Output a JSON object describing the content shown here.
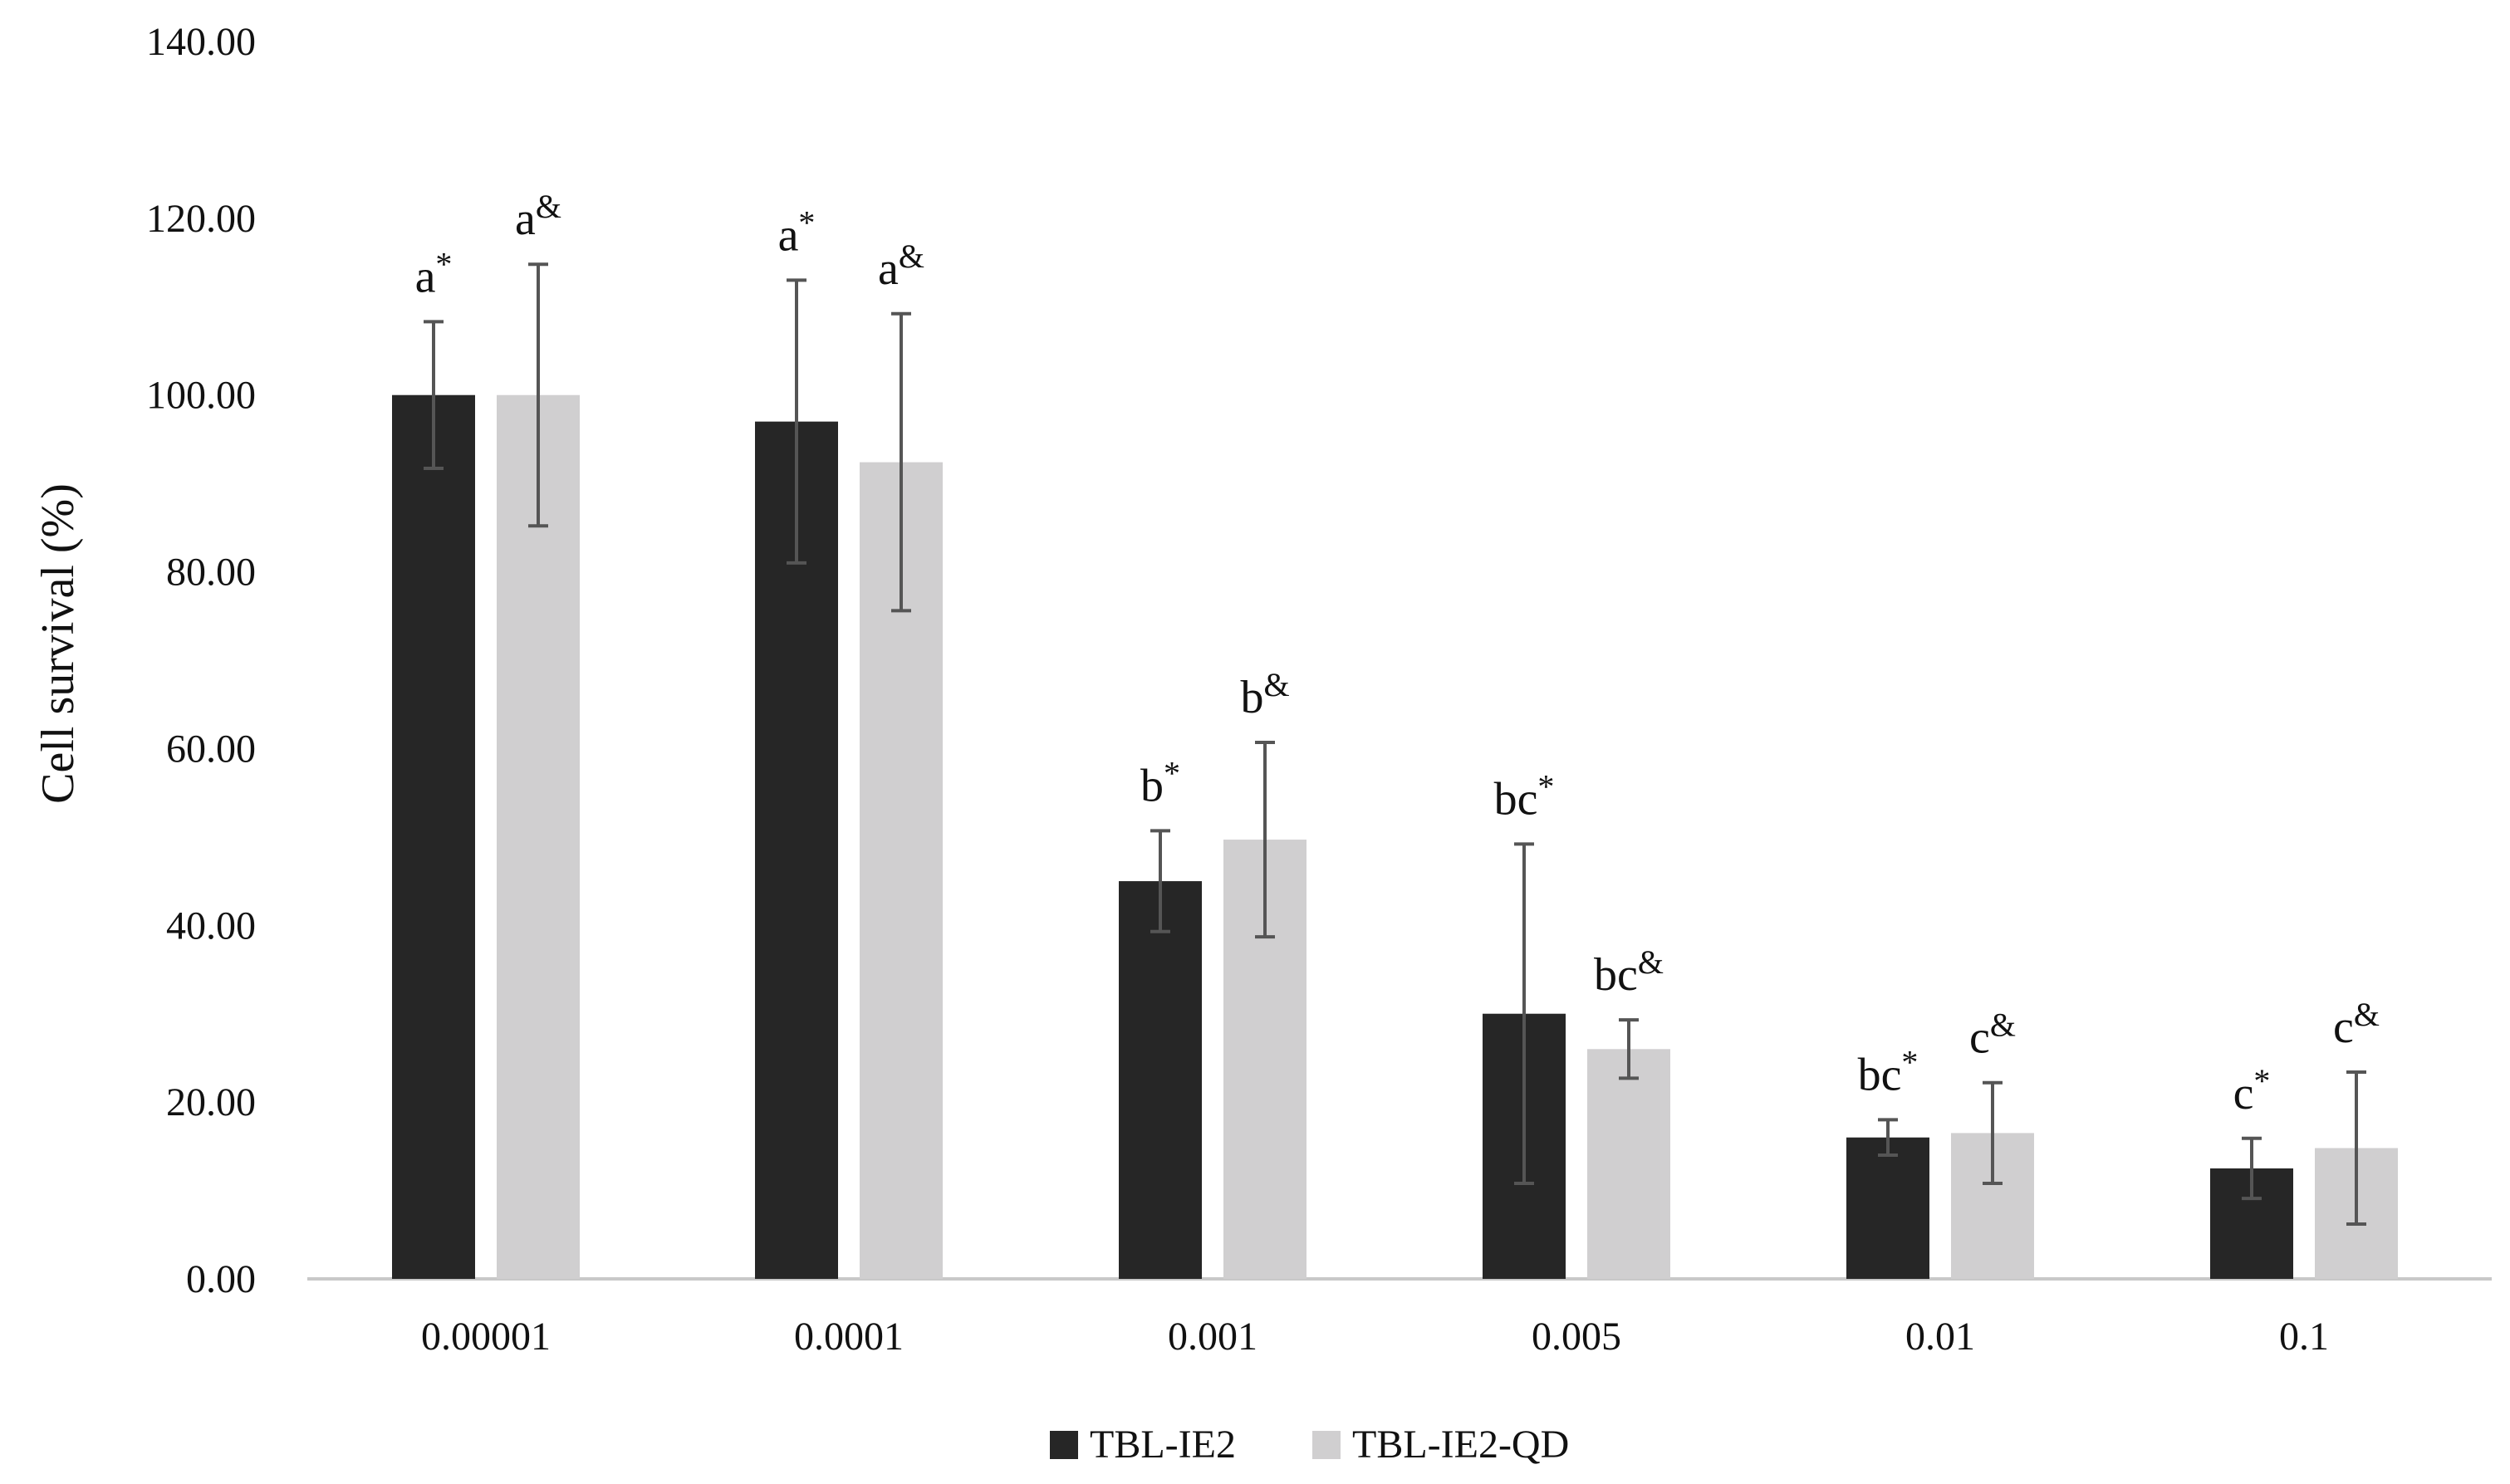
{
  "chart_data": {
    "type": "bar",
    "title": "",
    "xlabel": "",
    "ylabel": "Cell survival (%)",
    "ylim": [
      0,
      140
    ],
    "yticks": [
      "0.00",
      "20.00",
      "40.00",
      "60.00",
      "80.00",
      "100.00",
      "120.00",
      "140.00"
    ],
    "categories": [
      "0.00001",
      "0.0001",
      "0.001",
      "0.005",
      "0.01",
      "0.1"
    ],
    "grid": false,
    "legend_position": "bottom-center",
    "series": [
      {
        "name": "TBL-IE2",
        "color": "#262626",
        "values": [
          100.0,
          97.0,
          45.0,
          30.0,
          16.0,
          12.5
        ],
        "errors": [
          8.3,
          16.0,
          5.7,
          19.2,
          2.0,
          3.4
        ],
        "letters": [
          "a",
          "a",
          "b",
          "bc",
          "bc",
          "c"
        ],
        "marker": "*"
      },
      {
        "name": "TBL-IE2-QD",
        "color": "#d0cfd0",
        "values": [
          100.0,
          92.4,
          49.7,
          26.0,
          16.5,
          14.8
        ],
        "errors": [
          14.8,
          16.8,
          11.0,
          3.3,
          5.7,
          8.6
        ],
        "letters": [
          "a",
          "a",
          "b",
          "bc",
          "c",
          "c"
        ],
        "marker": "&"
      }
    ]
  }
}
